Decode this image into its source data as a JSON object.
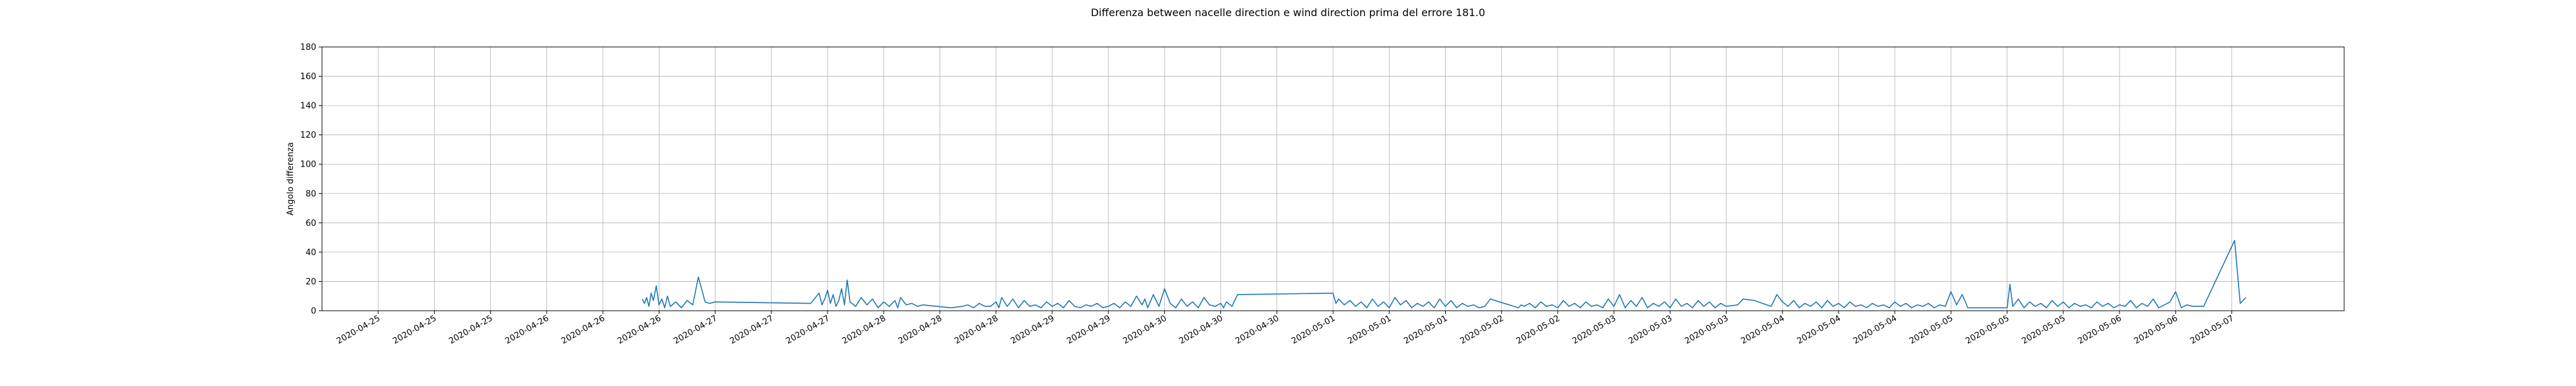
{
  "chart_data": {
    "type": "line",
    "title": "Differenza between nacelle direction e wind direction prima del errore 181.0",
    "ylabel": "Angolo differenza",
    "xlabel": "",
    "ylim": [
      0,
      180
    ],
    "yticks": [
      0,
      20,
      40,
      60,
      80,
      100,
      120,
      140,
      160,
      180
    ],
    "xticks": [
      "2020-04-25",
      "2020-04-25",
      "2020-04-25",
      "2020-04-26",
      "2020-04-26",
      "2020-04-26",
      "2020-04-27",
      "2020-04-27",
      "2020-04-27",
      "2020-04-28",
      "2020-04-28",
      "2020-04-28",
      "2020-04-29",
      "2020-04-29",
      "2020-04-30",
      "2020-04-30",
      "2020-04-30",
      "2020-05-01",
      "2020-05-01",
      "2020-05-01",
      "2020-05-02",
      "2020-05-02",
      "2020-05-03",
      "2020-05-03",
      "2020-05-03",
      "2020-05-04",
      "2020-05-04",
      "2020-05-04",
      "2020-05-05",
      "2020-05-05",
      "2020-05-05",
      "2020-05-06",
      "2020-05-06",
      "2020-05-07"
    ],
    "grid": true,
    "series": [
      {
        "color": "#1f77b4",
        "x": [
          4.7,
          4.74,
          4.78,
          4.82,
          4.86,
          4.9,
          4.95,
          5.0,
          5.05,
          5.1,
          5.15,
          5.2,
          5.3,
          5.4,
          5.5,
          5.6,
          5.7,
          5.82,
          5.9,
          6.0,
          7.7,
          7.85,
          7.9,
          7.95,
          8.0,
          8.05,
          8.1,
          8.15,
          8.2,
          8.25,
          8.3,
          8.35,
          8.4,
          8.5,
          8.6,
          8.7,
          8.8,
          8.9,
          9.0,
          9.1,
          9.2,
          9.25,
          9.3,
          9.4,
          9.5,
          9.6,
          9.7,
          10.2,
          10.4,
          10.5,
          10.6,
          10.7,
          10.8,
          10.9,
          11.0,
          11.05,
          11.1,
          11.2,
          11.3,
          11.4,
          11.5,
          11.6,
          11.7,
          11.8,
          11.9,
          12.0,
          12.1,
          12.2,
          12.3,
          12.4,
          12.5,
          12.6,
          12.7,
          12.8,
          12.9,
          13.0,
          13.1,
          13.2,
          13.3,
          13.4,
          13.5,
          13.6,
          13.65,
          13.7,
          13.8,
          13.9,
          14.0,
          14.1,
          14.2,
          14.3,
          14.4,
          14.5,
          14.6,
          14.7,
          14.8,
          14.9,
          15.0,
          15.05,
          15.1,
          15.2,
          15.3,
          17.0,
          17.05,
          17.1,
          17.2,
          17.3,
          17.4,
          17.5,
          17.6,
          17.7,
          17.8,
          17.9,
          18.0,
          18.1,
          18.2,
          18.3,
          18.4,
          18.5,
          18.6,
          18.7,
          18.8,
          18.9,
          19.0,
          19.1,
          19.2,
          19.3,
          19.4,
          19.5,
          19.6,
          19.7,
          19.8,
          20.3,
          20.35,
          20.4,
          20.5,
          20.6,
          20.7,
          20.8,
          20.9,
          21.0,
          21.1,
          21.2,
          21.3,
          21.4,
          21.5,
          21.6,
          21.7,
          21.8,
          21.9,
          22.0,
          22.1,
          22.2,
          22.3,
          22.4,
          22.5,
          22.6,
          22.7,
          22.8,
          22.9,
          23.0,
          23.1,
          23.2,
          23.3,
          23.4,
          23.5,
          23.6,
          23.7,
          23.8,
          23.9,
          24.0,
          24.2,
          24.3,
          24.5,
          24.8,
          24.9,
          25.0,
          25.1,
          25.2,
          25.3,
          25.4,
          25.5,
          25.6,
          25.7,
          25.8,
          25.9,
          26.0,
          26.1,
          26.2,
          26.3,
          26.4,
          26.5,
          26.6,
          26.7,
          26.8,
          26.9,
          27.0,
          27.1,
          27.2,
          27.3,
          27.4,
          27.5,
          27.6,
          27.7,
          27.8,
          27.9,
          28.0,
          28.1,
          28.2,
          28.3,
          29.0,
          29.05,
          29.1,
          29.2,
          29.3,
          29.4,
          29.5,
          29.6,
          29.7,
          29.8,
          29.9,
          30.0,
          30.1,
          30.2,
          30.3,
          30.4,
          30.5,
          30.6,
          30.7,
          30.8,
          30.9,
          31.0,
          31.1,
          31.2,
          31.3,
          31.4,
          31.5,
          31.6,
          31.7,
          31.8,
          31.9,
          32.0,
          32.1,
          32.2,
          32.3,
          32.5,
          33.05,
          33.15,
          33.25
        ],
        "values": [
          8,
          5,
          9,
          3,
          12,
          7,
          17,
          4,
          8,
          2,
          10,
          3,
          6,
          2,
          7,
          4,
          23,
          6,
          5,
          6,
          5,
          12,
          4,
          8,
          14,
          5,
          11,
          3,
          7,
          15,
          4,
          21,
          6,
          3,
          9,
          4,
          8,
          2,
          6,
          3,
          7,
          2,
          9,
          4,
          5,
          3,
          4,
          2,
          3,
          4,
          2,
          5,
          3,
          3,
          6,
          2,
          9,
          3,
          8,
          2,
          7,
          3,
          4,
          2,
          6,
          3,
          5,
          2,
          7,
          3,
          2,
          4,
          3,
          5,
          2,
          3,
          5,
          2,
          6,
          3,
          10,
          4,
          8,
          2,
          11,
          3,
          15,
          5,
          2,
          8,
          3,
          6,
          2,
          9,
          4,
          3,
          5,
          2,
          6,
          3,
          11,
          12,
          5,
          8,
          4,
          7,
          3,
          6,
          2,
          8,
          3,
          6,
          2,
          9,
          4,
          7,
          2,
          5,
          3,
          6,
          2,
          8,
          3,
          7,
          2,
          5,
          3,
          4,
          2,
          3,
          8,
          2,
          4,
          3,
          5,
          2,
          6,
          3,
          4,
          2,
          7,
          3,
          5,
          2,
          6,
          3,
          4,
          2,
          8,
          3,
          11,
          2,
          7,
          3,
          9,
          2,
          5,
          3,
          6,
          2,
          8,
          3,
          5,
          2,
          7,
          3,
          6,
          2,
          5,
          3,
          4,
          8,
          7,
          3,
          11,
          6,
          3,
          7,
          2,
          5,
          3,
          6,
          2,
          7,
          3,
          5,
          2,
          6,
          3,
          4,
          2,
          5,
          3,
          4,
          2,
          6,
          3,
          5,
          2,
          4,
          3,
          5,
          2,
          4,
          3,
          13,
          4,
          11,
          2,
          2,
          18,
          3,
          8,
          2,
          6,
          3,
          5,
          2,
          7,
          3,
          6,
          2,
          5,
          3,
          4,
          2,
          6,
          3,
          5,
          2,
          4,
          3,
          7,
          2,
          5,
          3,
          8,
          2,
          4,
          6,
          13,
          2,
          4,
          3,
          3,
          48,
          5,
          9
        ]
      }
    ],
    "xlim": [
      -1,
      35
    ]
  }
}
